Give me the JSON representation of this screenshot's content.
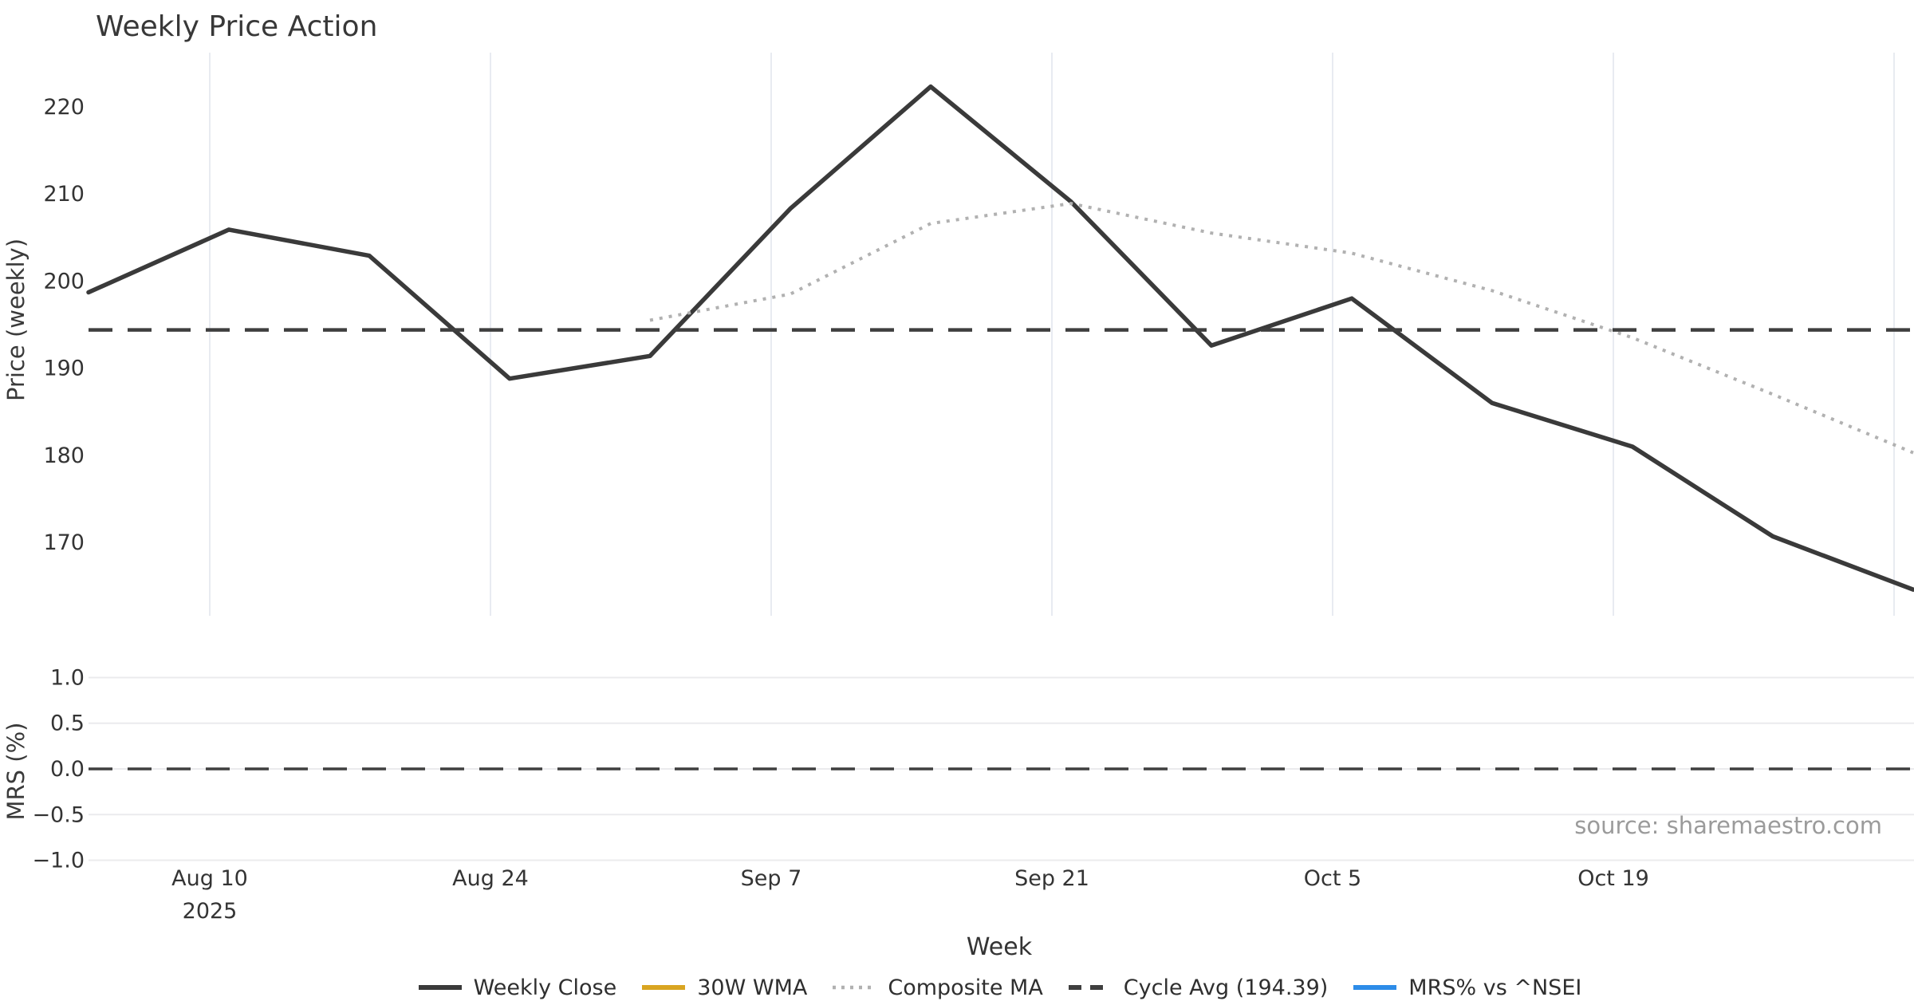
{
  "title": "Weekly Price Action",
  "xlabel": "Week",
  "source_text": "source: sharemaestro.com",
  "price_panel": {
    "ylabel": "Price (weekly)",
    "yticks": [
      220,
      210,
      200,
      190,
      180,
      170
    ],
    "cycle_avg_value": 194.39
  },
  "mrs_panel": {
    "ylabel": "MRS (%)",
    "ytick_labels": [
      "1.0",
      "0.5",
      "0.0",
      "−0.5",
      "−1.0"
    ],
    "ytick_values": [
      1.0,
      0.5,
      0.0,
      -0.5,
      -1.0
    ],
    "zero_line": 0.0
  },
  "legend": [
    {
      "label": "Weekly Close",
      "color": "#3a3a3a",
      "style": "solid"
    },
    {
      "label": "30W WMA",
      "color": "#d9a521",
      "style": "solid"
    },
    {
      "label": "Composite MA",
      "color": "#b1b1b1",
      "style": "dotted"
    },
    {
      "label": "Cycle Avg (194.39)",
      "color": "#3f3f3f",
      "style": "dashed"
    },
    {
      "label": "MRS% vs ^NSEI",
      "color": "#2d8ce8",
      "style": "solid"
    }
  ],
  "chart_data": {
    "type": "line",
    "x": [
      "Aug 4",
      "Aug 11",
      "Aug 18",
      "Aug 25",
      "Sep 1",
      "Sep 8",
      "Sep 15",
      "Sep 22",
      "Sep 29",
      "Oct 6",
      "Oct 13",
      "Oct 20",
      "Oct 27",
      "Nov 3"
    ],
    "year": "2025",
    "x_ticks": [
      {
        "label": "Aug 10",
        "sublabel": "2025"
      },
      {
        "label": "Aug 24"
      },
      {
        "label": "Sep 7"
      },
      {
        "label": "Sep 21"
      },
      {
        "label": "Oct 5"
      },
      {
        "label": "Oct 19"
      },
      {
        "label": ""
      }
    ],
    "series": [
      {
        "name": "Weekly Close",
        "panel": "price",
        "color": "#3a3a3a",
        "style": "solid",
        "width": 5.5,
        "values": [
          198.7,
          205.9,
          202.9,
          188.8,
          191.4,
          208.3,
          222.3,
          209.1,
          192.6,
          198.0,
          186.0,
          181.0,
          170.7,
          164.6
        ]
      },
      {
        "name": "30W WMA",
        "panel": "price",
        "color": "#d9a521",
        "style": "solid",
        "width": 5.5,
        "values": []
      },
      {
        "name": "Composite MA",
        "panel": "price",
        "color": "#b1b1b1",
        "style": "dotted",
        "width": 4,
        "values": [
          null,
          null,
          null,
          null,
          195.5,
          198.5,
          206.6,
          208.9,
          205.5,
          203.2,
          198.9,
          193.5,
          187.0,
          180.3
        ]
      },
      {
        "name": "Cycle Avg (194.39)",
        "panel": "price",
        "color": "#3f3f3f",
        "style": "dashed",
        "width": 4.5,
        "constant": 194.39
      },
      {
        "name": "MRS% vs ^NSEI",
        "panel": "mrs",
        "color": "#2d8ce8",
        "style": "solid",
        "width": 4,
        "values": []
      }
    ],
    "mrs_zero_dashed": {
      "value": 0.0,
      "color": "#3f3f3f",
      "style": "dashed",
      "width": 3.5
    },
    "price_ylim": [
      161.6,
      226.2
    ],
    "mrs_ylim": [
      -1.1,
      1.1
    ],
    "grid": {
      "price_panel": "vertical",
      "mrs_panel": "horizontal"
    },
    "legend_position": "bottom-center"
  }
}
